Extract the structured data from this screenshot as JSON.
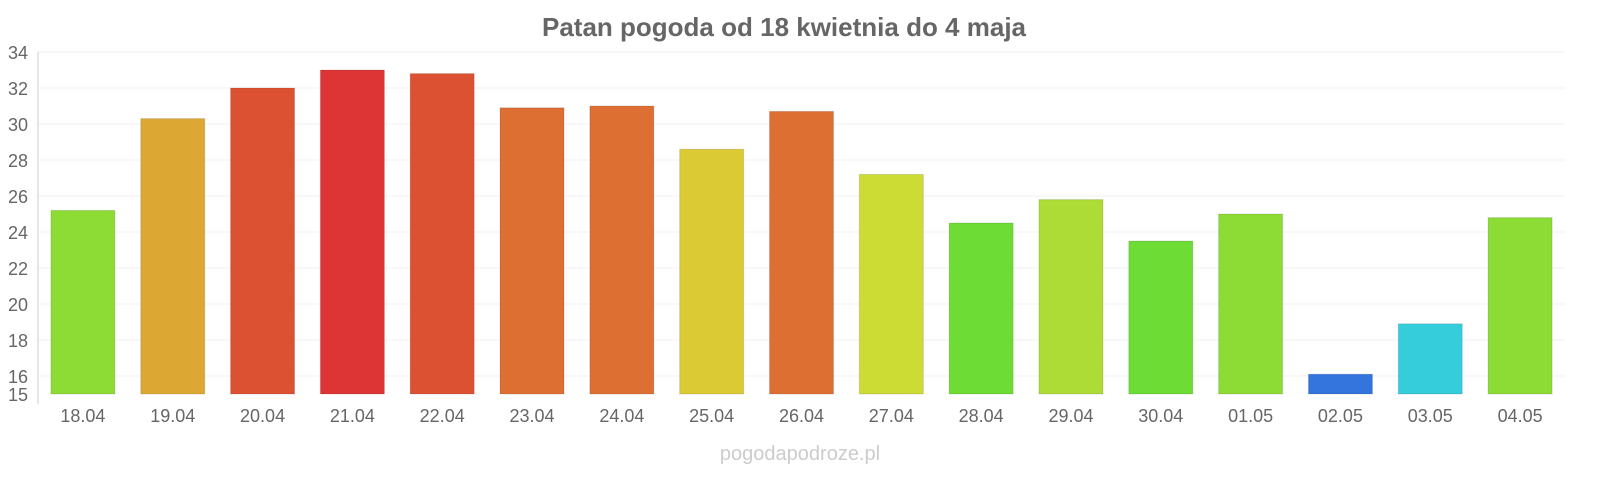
{
  "chart_data": {
    "type": "bar",
    "title": "Patan pogoda od 18 kwietnia do 4 maja",
    "xlabel": "",
    "ylabel": "",
    "ylim": [
      15,
      34
    ],
    "yticks": [
      15,
      16,
      18,
      20,
      22,
      24,
      26,
      28,
      30,
      32,
      34
    ],
    "grid": true,
    "categories": [
      "18.04",
      "19.04",
      "20.04",
      "21.04",
      "22.04",
      "23.04",
      "24.04",
      "25.04",
      "26.04",
      "27.04",
      "28.04",
      "29.04",
      "30.04",
      "01.05",
      "02.05",
      "03.05",
      "04.05"
    ],
    "values": [
      25.2,
      30.3,
      32.0,
      33.0,
      32.8,
      30.9,
      31.0,
      28.6,
      30.7,
      27.2,
      24.5,
      25.8,
      23.5,
      25.0,
      16.1,
      18.9,
      24.8
    ],
    "colors": [
      "#8ddc35",
      "#dca833",
      "#dd5133",
      "#dd3535",
      "#dd5133",
      "#de6f33",
      "#de6f33",
      "#dcca35",
      "#de6f33",
      "#cddc35",
      "#6ddc35",
      "#acdc35",
      "#6ddc35",
      "#8ddc35",
      "#3375dd",
      "#35cddc",
      "#8ddc35"
    ]
  },
  "watermark": "pogodapodroze.pl"
}
